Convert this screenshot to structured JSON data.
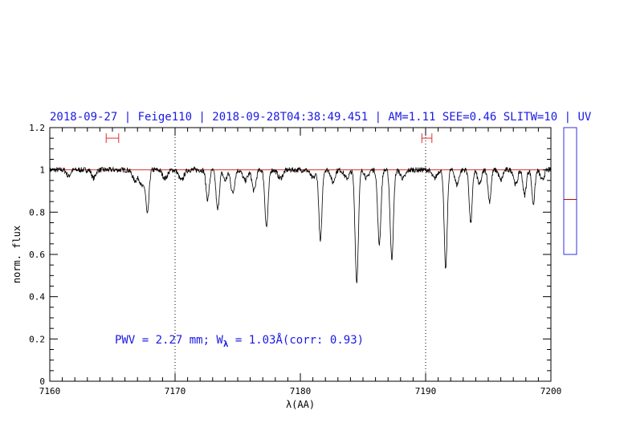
{
  "chart_data": {
    "type": "line",
    "title": "2018-09-27 | Feige110 | 2018-09-28T04:38:49.451 | AM=1.11 SEE=0.46 SLITW=10 | UV",
    "xlabel": "λ(AA)",
    "ylabel": "norm. flux",
    "xlim": [
      7160,
      7200
    ],
    "ylim": [
      0,
      1.2
    ],
    "x_ticks": [
      "7160",
      "7170",
      "7180",
      "7190",
      "7200"
    ],
    "y_ticks": [
      "0",
      "0.2",
      "0.4",
      "0.6",
      "0.8",
      "1",
      "1.2"
    ],
    "grid": false,
    "annotation": {
      "prefix": "PWV  =  2.27  mm;  W",
      "subscript": "λ",
      "suffix": "  =  1.03Å(corr: 0.93)"
    },
    "vertical_markers": [
      7170,
      7190
    ],
    "reference_line": {
      "y": 1.0,
      "color": "#e03030"
    },
    "bracket_markers": [
      {
        "x0": 7164.5,
        "x1": 7165.5,
        "y": 1.15
      },
      {
        "x0": 7189.7,
        "x1": 7190.5,
        "y": 1.15
      }
    ],
    "side_panel": {
      "ymin": 0.6,
      "ymax": 1.2,
      "level": 0.86
    },
    "series": [
      {
        "color": "#000000",
        "baseline": 1.0,
        "absorption_lines": [
          {
            "x": 7161.5,
            "depth": 0.03,
            "width": 0.15
          },
          {
            "x": 7163.5,
            "depth": 0.04,
            "width": 0.15
          },
          {
            "x": 7166.8,
            "depth": 0.05,
            "width": 0.2
          },
          {
            "x": 7167.4,
            "depth": 0.08,
            "width": 0.2
          },
          {
            "x": 7167.8,
            "depth": 0.2,
            "width": 0.12
          },
          {
            "x": 7169.2,
            "depth": 0.04,
            "width": 0.2
          },
          {
            "x": 7170.5,
            "depth": 0.05,
            "width": 0.2
          },
          {
            "x": 7172.6,
            "depth": 0.14,
            "width": 0.13
          },
          {
            "x": 7173.4,
            "depth": 0.19,
            "width": 0.13
          },
          {
            "x": 7174.0,
            "depth": 0.05,
            "width": 0.15
          },
          {
            "x": 7174.6,
            "depth": 0.11,
            "width": 0.15
          },
          {
            "x": 7175.6,
            "depth": 0.05,
            "width": 0.2
          },
          {
            "x": 7176.3,
            "depth": 0.1,
            "width": 0.15
          },
          {
            "x": 7177.3,
            "depth": 0.27,
            "width": 0.13
          },
          {
            "x": 7178.4,
            "depth": 0.04,
            "width": 0.2
          },
          {
            "x": 7181.0,
            "depth": 0.04,
            "width": 0.2
          },
          {
            "x": 7181.6,
            "depth": 0.34,
            "width": 0.12
          },
          {
            "x": 7182.6,
            "depth": 0.06,
            "width": 0.15
          },
          {
            "x": 7183.7,
            "depth": 0.04,
            "width": 0.2
          },
          {
            "x": 7184.5,
            "depth": 0.53,
            "width": 0.13
          },
          {
            "x": 7185.3,
            "depth": 0.04,
            "width": 0.15
          },
          {
            "x": 7186.3,
            "depth": 0.35,
            "width": 0.13
          },
          {
            "x": 7187.3,
            "depth": 0.42,
            "width": 0.13
          },
          {
            "x": 7188.2,
            "depth": 0.04,
            "width": 0.2
          },
          {
            "x": 7190.7,
            "depth": 0.04,
            "width": 0.2
          },
          {
            "x": 7191.6,
            "depth": 0.47,
            "width": 0.12
          },
          {
            "x": 7192.5,
            "depth": 0.07,
            "width": 0.15
          },
          {
            "x": 7193.6,
            "depth": 0.25,
            "width": 0.12
          },
          {
            "x": 7194.3,
            "depth": 0.07,
            "width": 0.15
          },
          {
            "x": 7195.1,
            "depth": 0.15,
            "width": 0.12
          },
          {
            "x": 7196.0,
            "depth": 0.05,
            "width": 0.15
          },
          {
            "x": 7197.2,
            "depth": 0.07,
            "width": 0.15
          },
          {
            "x": 7197.9,
            "depth": 0.12,
            "width": 0.13
          },
          {
            "x": 7198.6,
            "depth": 0.16,
            "width": 0.12
          },
          {
            "x": 7199.3,
            "depth": 0.05,
            "width": 0.15
          }
        ]
      }
    ]
  }
}
